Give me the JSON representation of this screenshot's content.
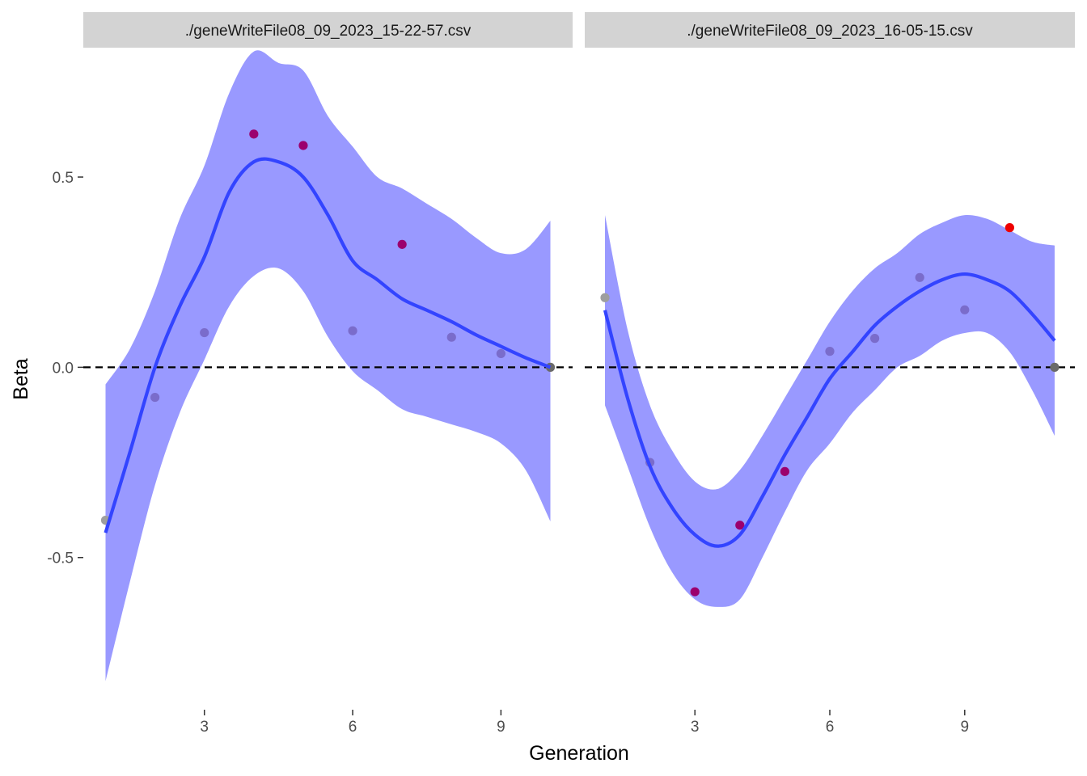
{
  "chart_data": {
    "type": "scatter",
    "xlabel": "Generation",
    "ylabel": "Beta",
    "y_axis": {
      "ticks": [
        -0.5,
        0.0,
        0.5
      ],
      "tick_labels": [
        "-0.5",
        "0.0",
        "0.5"
      ],
      "range": [
        -0.9,
        0.84
      ]
    },
    "x_axis": {
      "ticks": [
        3,
        6,
        9
      ],
      "tick_labels": [
        "3",
        "6",
        "9"
      ]
    },
    "reference_line": {
      "y": 0,
      "style": "dashed",
      "color": "#000000"
    },
    "grid": false,
    "legend": "none",
    "colors": {
      "smooth_line": "#3344ff",
      "ribbon": "#9999ff",
      "strip": "#d3d3d3"
    },
    "facets": [
      {
        "title": "./geneWriteFile08_09_2023_15-22-57.csv",
        "x_range": [
          0.55,
          10.45
        ],
        "points": [
          {
            "x": 1,
            "y": -0.402,
            "color": "#9e9e9e"
          },
          {
            "x": 2,
            "y": -0.079,
            "color": "#7a6ccb"
          },
          {
            "x": 3,
            "y": 0.091,
            "color": "#7a6ccb"
          },
          {
            "x": 4,
            "y": 0.613,
            "color": "#9b006e"
          },
          {
            "x": 5,
            "y": 0.583,
            "color": "#9b006e"
          },
          {
            "x": 6,
            "y": 0.096,
            "color": "#7a6ccb"
          },
          {
            "x": 7,
            "y": 0.323,
            "color": "#9b006e"
          },
          {
            "x": 8,
            "y": 0.079,
            "color": "#7a6ccb"
          },
          {
            "x": 9,
            "y": 0.036,
            "color": "#7a6ccb"
          },
          {
            "x": 10,
            "y": 0.0,
            "color": "#6a6a6a"
          }
        ],
        "smooth": [
          {
            "x": 1,
            "y": -0.435,
            "lo": -0.825,
            "hi": -0.045
          },
          {
            "x": 1.5,
            "y": -0.22,
            "lo": -0.56,
            "hi": 0.05
          },
          {
            "x": 2,
            "y": 0.0,
            "lo": -0.31,
            "hi": 0.2
          },
          {
            "x": 2.5,
            "y": 0.16,
            "lo": -0.12,
            "hi": 0.39
          },
          {
            "x": 3,
            "y": 0.29,
            "lo": 0.02,
            "hi": 0.53
          },
          {
            "x": 3.5,
            "y": 0.46,
            "lo": 0.16,
            "hi": 0.72
          },
          {
            "x": 4,
            "y": 0.54,
            "lo": 0.24,
            "hi": 0.83
          },
          {
            "x": 4.5,
            "y": 0.54,
            "lo": 0.26,
            "hi": 0.8
          },
          {
            "x": 5,
            "y": 0.5,
            "lo": 0.2,
            "hi": 0.78
          },
          {
            "x": 5.5,
            "y": 0.4,
            "lo": 0.08,
            "hi": 0.66
          },
          {
            "x": 6,
            "y": 0.28,
            "lo": -0.01,
            "hi": 0.58
          },
          {
            "x": 6.5,
            "y": 0.23,
            "lo": -0.06,
            "hi": 0.5
          },
          {
            "x": 7,
            "y": 0.18,
            "lo": -0.11,
            "hi": 0.47
          },
          {
            "x": 7.5,
            "y": 0.15,
            "lo": -0.13,
            "hi": 0.43
          },
          {
            "x": 8,
            "y": 0.12,
            "lo": -0.15,
            "hi": 0.39
          },
          {
            "x": 8.5,
            "y": 0.085,
            "lo": -0.17,
            "hi": 0.34
          },
          {
            "x": 9,
            "y": 0.055,
            "lo": -0.2,
            "hi": 0.3
          },
          {
            "x": 9.5,
            "y": 0.025,
            "lo": -0.27,
            "hi": 0.31
          },
          {
            "x": 10,
            "y": 0.0,
            "lo": -0.405,
            "hi": 0.385
          }
        ]
      },
      {
        "title": "./geneWriteFile08_09_2023_16-05-15.csv",
        "x_range": [
          0.55,
          11.45
        ],
        "points": [
          {
            "x": 1,
            "y": 0.183,
            "color": "#9e9e9e"
          },
          {
            "x": 2,
            "y": -0.25,
            "color": "#7a6ccb"
          },
          {
            "x": 3,
            "y": -0.59,
            "color": "#9b006e"
          },
          {
            "x": 4,
            "y": -0.415,
            "color": "#9b006e"
          },
          {
            "x": 5,
            "y": -0.274,
            "color": "#9b006e"
          },
          {
            "x": 6,
            "y": 0.042,
            "color": "#7a6ccb"
          },
          {
            "x": 7,
            "y": 0.076,
            "color": "#7a6ccb"
          },
          {
            "x": 8,
            "y": 0.236,
            "color": "#7a6ccb"
          },
          {
            "x": 9,
            "y": 0.151,
            "color": "#7a6ccb"
          },
          {
            "x": 10,
            "y": 0.367,
            "color": "#ee0000"
          },
          {
            "x": 11,
            "y": 0.0,
            "color": "#6a6a6a"
          }
        ],
        "smooth": [
          {
            "x": 1,
            "y": 0.15,
            "lo": -0.1,
            "hi": 0.4
          },
          {
            "x": 1.5,
            "y": -0.08,
            "lo": -0.26,
            "hi": 0.1
          },
          {
            "x": 2,
            "y": -0.26,
            "lo": -0.42,
            "hi": -0.1
          },
          {
            "x": 2.5,
            "y": -0.37,
            "lo": -0.54,
            "hi": -0.22
          },
          {
            "x": 3,
            "y": -0.44,
            "lo": -0.61,
            "hi": -0.3
          },
          {
            "x": 3.5,
            "y": -0.47,
            "lo": -0.63,
            "hi": -0.32
          },
          {
            "x": 4,
            "y": -0.44,
            "lo": -0.61,
            "hi": -0.27
          },
          {
            "x": 4.5,
            "y": -0.34,
            "lo": -0.5,
            "hi": -0.18
          },
          {
            "x": 5,
            "y": -0.23,
            "lo": -0.38,
            "hi": -0.08
          },
          {
            "x": 5.5,
            "y": -0.13,
            "lo": -0.27,
            "hi": 0.02
          },
          {
            "x": 6,
            "y": -0.03,
            "lo": -0.2,
            "hi": 0.12
          },
          {
            "x": 6.5,
            "y": 0.04,
            "lo": -0.12,
            "hi": 0.2
          },
          {
            "x": 7,
            "y": 0.11,
            "lo": -0.06,
            "hi": 0.26
          },
          {
            "x": 7.5,
            "y": 0.16,
            "lo": 0.0,
            "hi": 0.3
          },
          {
            "x": 8,
            "y": 0.2,
            "lo": 0.03,
            "hi": 0.35
          },
          {
            "x": 8.5,
            "y": 0.23,
            "lo": 0.07,
            "hi": 0.38
          },
          {
            "x": 9,
            "y": 0.245,
            "lo": 0.09,
            "hi": 0.4
          },
          {
            "x": 9.5,
            "y": 0.23,
            "lo": 0.09,
            "hi": 0.39
          },
          {
            "x": 10,
            "y": 0.2,
            "lo": 0.04,
            "hi": 0.36
          },
          {
            "x": 10.5,
            "y": 0.14,
            "lo": -0.06,
            "hi": 0.33
          },
          {
            "x": 11,
            "y": 0.07,
            "lo": -0.18,
            "hi": 0.32
          }
        ]
      }
    ]
  }
}
